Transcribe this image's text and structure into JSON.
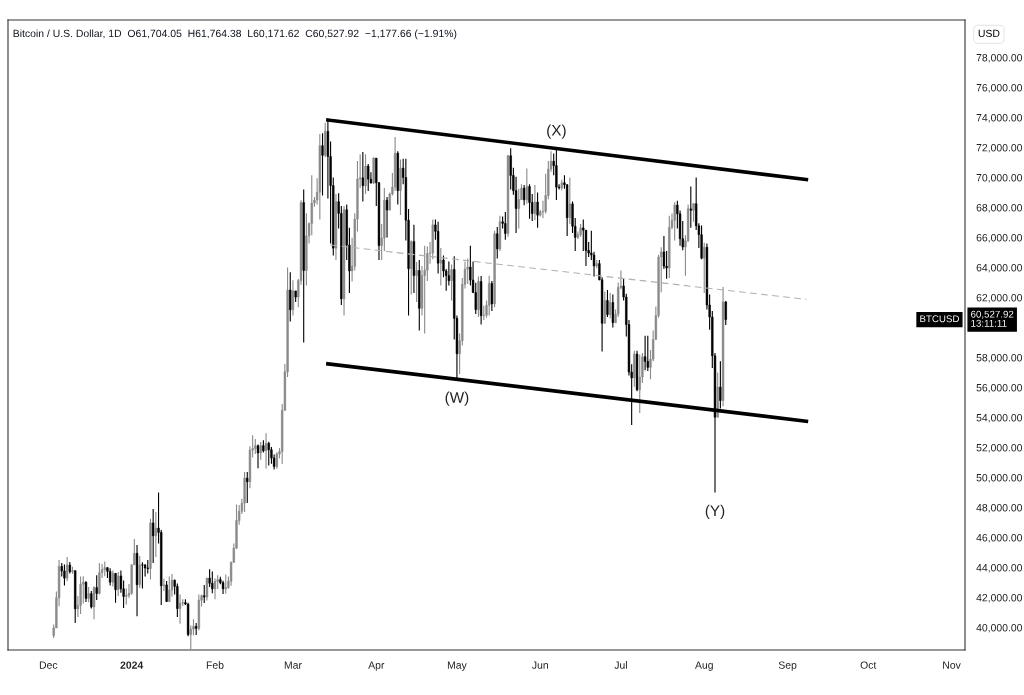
{
  "chart_data": {
    "type": "candlestick",
    "title": "Bitcoin / U.S. Dollar, 1D  O61,704.05  H61,764.38  L60,171.62  C60,527.92  −1,177.66 (−1.91%)",
    "ylabel": "USD",
    "x": [
      "2023-12-03",
      "2023-12-04",
      "2023-12-05",
      "2023-12-06",
      "2023-12-07",
      "2023-12-08",
      "2023-12-09",
      "2023-12-10",
      "2023-12-11",
      "2023-12-12",
      "2023-12-13",
      "2023-12-14",
      "2023-12-15",
      "2023-12-16",
      "2023-12-17",
      "2023-12-18",
      "2023-12-19",
      "2023-12-20",
      "2023-12-21",
      "2023-12-22",
      "2023-12-23",
      "2023-12-24",
      "2023-12-25",
      "2023-12-26",
      "2023-12-27",
      "2023-12-28",
      "2023-12-29",
      "2023-12-30",
      "2023-12-31",
      "2024-01-01",
      "2024-01-02",
      "2024-01-03",
      "2024-01-04",
      "2024-01-05",
      "2024-01-06",
      "2024-01-07",
      "2024-01-08",
      "2024-01-09",
      "2024-01-10",
      "2024-01-11",
      "2024-01-12",
      "2024-01-13",
      "2024-01-14",
      "2024-01-15",
      "2024-01-16",
      "2024-01-17",
      "2024-01-18",
      "2024-01-19",
      "2024-01-20",
      "2024-01-21",
      "2024-01-22",
      "2024-01-23",
      "2024-01-24",
      "2024-01-25",
      "2024-01-26",
      "2024-01-27",
      "2024-01-28",
      "2024-01-29",
      "2024-01-30",
      "2024-01-31",
      "2024-02-01",
      "2024-02-02",
      "2024-02-03",
      "2024-02-04",
      "2024-02-05",
      "2024-02-06",
      "2024-02-07",
      "2024-02-08",
      "2024-02-09",
      "2024-02-10",
      "2024-02-11",
      "2024-02-12",
      "2024-02-13",
      "2024-02-14",
      "2024-02-15",
      "2024-02-16",
      "2024-02-17",
      "2024-02-18",
      "2024-02-19",
      "2024-02-20",
      "2024-02-21",
      "2024-02-22",
      "2024-02-23",
      "2024-02-24",
      "2024-02-25",
      "2024-02-26",
      "2024-02-27",
      "2024-02-28",
      "2024-02-29",
      "2024-03-01",
      "2024-03-02",
      "2024-03-03",
      "2024-03-04",
      "2024-03-05",
      "2024-03-06",
      "2024-03-07",
      "2024-03-08",
      "2024-03-09",
      "2024-03-10",
      "2024-03-11",
      "2024-03-12",
      "2024-03-13",
      "2024-03-14",
      "2024-03-15",
      "2024-03-16",
      "2024-03-17",
      "2024-03-18",
      "2024-03-19",
      "2024-03-20",
      "2024-03-21",
      "2024-03-22",
      "2024-03-23",
      "2024-03-24",
      "2024-03-25",
      "2024-03-26",
      "2024-03-27",
      "2024-03-28",
      "2024-03-29",
      "2024-03-30",
      "2024-03-31",
      "2024-04-01",
      "2024-04-02",
      "2024-04-03",
      "2024-04-04",
      "2024-04-05",
      "2024-04-06",
      "2024-04-07",
      "2024-04-08",
      "2024-04-09",
      "2024-04-10",
      "2024-04-11",
      "2024-04-12",
      "2024-04-13",
      "2024-04-14",
      "2024-04-15",
      "2024-04-16",
      "2024-04-17",
      "2024-04-18",
      "2024-04-19",
      "2024-04-20",
      "2024-04-21",
      "2024-04-22",
      "2024-04-23",
      "2024-04-24",
      "2024-04-25",
      "2024-04-26",
      "2024-04-27",
      "2024-04-28",
      "2024-04-29",
      "2024-04-30",
      "2024-05-01",
      "2024-05-02",
      "2024-05-03",
      "2024-05-04",
      "2024-05-05",
      "2024-05-06",
      "2024-05-07",
      "2024-05-08",
      "2024-05-09",
      "2024-05-10",
      "2024-05-11",
      "2024-05-12",
      "2024-05-13",
      "2024-05-14",
      "2024-05-15",
      "2024-05-16",
      "2024-05-17",
      "2024-05-18",
      "2024-05-19",
      "2024-05-20",
      "2024-05-21",
      "2024-05-22",
      "2024-05-23",
      "2024-05-24",
      "2024-05-25",
      "2024-05-26",
      "2024-05-27",
      "2024-05-28",
      "2024-05-29",
      "2024-05-30",
      "2024-05-31",
      "2024-06-01",
      "2024-06-02",
      "2024-06-03",
      "2024-06-04",
      "2024-06-05",
      "2024-06-06",
      "2024-06-07",
      "2024-06-08",
      "2024-06-09",
      "2024-06-10",
      "2024-06-11",
      "2024-06-12",
      "2024-06-13",
      "2024-06-14",
      "2024-06-15",
      "2024-06-16",
      "2024-06-17",
      "2024-06-18",
      "2024-06-19",
      "2024-06-20",
      "2024-06-21",
      "2024-06-22",
      "2024-06-23",
      "2024-06-24",
      "2024-06-25",
      "2024-06-26",
      "2024-06-27",
      "2024-06-28",
      "2024-06-29",
      "2024-06-30",
      "2024-07-01",
      "2024-07-02",
      "2024-07-03",
      "2024-07-04",
      "2024-07-05",
      "2024-07-06",
      "2024-07-07",
      "2024-07-08",
      "2024-07-09",
      "2024-07-10",
      "2024-07-11",
      "2024-07-12",
      "2024-07-13",
      "2024-07-14",
      "2024-07-15",
      "2024-07-16",
      "2024-07-17",
      "2024-07-18",
      "2024-07-19",
      "2024-07-20",
      "2024-07-21",
      "2024-07-22",
      "2024-07-23",
      "2024-07-24",
      "2024-07-25",
      "2024-07-26",
      "2024-07-27",
      "2024-07-28",
      "2024-07-29",
      "2024-07-30",
      "2024-07-31",
      "2024-08-01",
      "2024-08-02",
      "2024-08-03",
      "2024-08-04",
      "2024-08-05",
      "2024-08-06",
      "2024-08-07",
      "2024-08-08",
      "2024-08-09"
    ],
    "ohlc": [
      [
        39460,
        40200,
        39300,
        39970
      ],
      [
        39970,
        42400,
        39970,
        41980
      ],
      [
        41980,
        44500,
        41420,
        44080
      ],
      [
        44080,
        44300,
        43400,
        43770
      ],
      [
        43770,
        44200,
        42800,
        43290
      ],
      [
        43290,
        44700,
        43100,
        44170
      ],
      [
        44170,
        44370,
        43600,
        43720
      ],
      [
        43720,
        44050,
        43580,
        43790
      ],
      [
        43790,
        43800,
        40300,
        41240
      ],
      [
        41240,
        42100,
        40700,
        41480
      ],
      [
        41480,
        43400,
        40900,
        42890
      ],
      [
        42890,
        43420,
        41600,
        43020
      ],
      [
        43020,
        43090,
        41700,
        41940
      ],
      [
        41940,
        42700,
        41680,
        42260
      ],
      [
        42260,
        42430,
        41260,
        41370
      ],
      [
        41370,
        42750,
        40550,
        42660
      ],
      [
        42660,
        43480,
        41830,
        42270
      ],
      [
        42270,
        44290,
        42200,
        43660
      ],
      [
        43660,
        44240,
        43300,
        43860
      ],
      [
        43860,
        44400,
        43420,
        43990
      ],
      [
        43990,
        44020,
        43300,
        43740
      ],
      [
        43740,
        43950,
        42800,
        43020
      ],
      [
        43020,
        43800,
        42740,
        43610
      ],
      [
        43610,
        43620,
        41650,
        42520
      ],
      [
        42520,
        43700,
        42100,
        43440
      ],
      [
        43440,
        43800,
        42320,
        42580
      ],
      [
        42580,
        43130,
        41300,
        42070
      ],
      [
        42070,
        42600,
        41540,
        42140
      ],
      [
        42140,
        42900,
        41960,
        42280
      ],
      [
        42280,
        44200,
        42180,
        44180
      ],
      [
        44180,
        45900,
        44180,
        44950
      ],
      [
        44950,
        45500,
        40750,
        42850
      ],
      [
        42850,
        44770,
        42630,
        44180
      ],
      [
        44180,
        44350,
        42600,
        44160
      ],
      [
        44160,
        44230,
        43400,
        43970
      ],
      [
        43970,
        44500,
        43600,
        43930
      ],
      [
        43930,
        47250,
        43200,
        46970
      ],
      [
        46970,
        47900,
        44300,
        46110
      ],
      [
        46110,
        47700,
        44700,
        46630
      ],
      [
        46630,
        49000,
        45600,
        46340
      ],
      [
        46340,
        46500,
        41500,
        42780
      ],
      [
        42780,
        43250,
        42440,
        42840
      ],
      [
        42840,
        43100,
        41720,
        41730
      ],
      [
        41730,
        43400,
        41720,
        42500
      ],
      [
        42500,
        43570,
        42050,
        43150
      ],
      [
        43150,
        43200,
        42200,
        42740
      ],
      [
        42740,
        42930,
        40700,
        41260
      ],
      [
        41260,
        42200,
        40250,
        41620
      ],
      [
        41620,
        41880,
        41430,
        41660
      ],
      [
        41660,
        41880,
        41500,
        41560
      ],
      [
        41560,
        41650,
        39420,
        39530
      ],
      [
        39530,
        40140,
        38555,
        39890
      ],
      [
        39890,
        40550,
        39480,
        40080
      ],
      [
        40080,
        40300,
        39500,
        39940
      ],
      [
        39940,
        42200,
        39800,
        41820
      ],
      [
        41820,
        42200,
        41400,
        42120
      ],
      [
        42120,
        42830,
        41640,
        42030
      ],
      [
        42030,
        43300,
        41800,
        43300
      ],
      [
        43300,
        43880,
        42700,
        42950
      ],
      [
        42950,
        43740,
        42290,
        42580
      ],
      [
        42580,
        43290,
        41880,
        43080
      ],
      [
        43080,
        43480,
        42570,
        43190
      ],
      [
        43190,
        43380,
        42880,
        42990
      ],
      [
        42990,
        43120,
        42230,
        42580
      ],
      [
        42580,
        43540,
        42250,
        42660
      ],
      [
        42660,
        43400,
        42580,
        43090
      ],
      [
        43090,
        44400,
        42780,
        44340
      ],
      [
        44340,
        45600,
        44340,
        45290
      ],
      [
        45290,
        48200,
        45240,
        47130
      ],
      [
        47130,
        48170,
        46850,
        47750
      ],
      [
        47750,
        48590,
        47560,
        48290
      ],
      [
        48290,
        50360,
        47700,
        49960
      ],
      [
        49960,
        50370,
        48300,
        49720
      ],
      [
        49720,
        52080,
        49280,
        51820
      ],
      [
        51820,
        52820,
        51330,
        51930
      ],
      [
        51930,
        52570,
        51570,
        52120
      ],
      [
        52120,
        52200,
        50620,
        51640
      ],
      [
        51640,
        52370,
        51180,
        52120
      ],
      [
        52120,
        52480,
        51670,
        51780
      ],
      [
        51780,
        52950,
        50600,
        52280
      ],
      [
        52280,
        52380,
        50800,
        51850
      ],
      [
        51850,
        52030,
        50920,
        51300
      ],
      [
        51300,
        51540,
        50530,
        50730
      ],
      [
        50730,
        51680,
        50580,
        51570
      ],
      [
        51570,
        51960,
        51280,
        51730
      ],
      [
        51730,
        54900,
        50900,
        54490
      ],
      [
        54490,
        57570,
        54450,
        57050
      ],
      [
        57050,
        64000,
        56700,
        62500
      ],
      [
        62500,
        63680,
        60400,
        61180
      ],
      [
        61180,
        63150,
        60800,
        62440
      ],
      [
        62440,
        62440,
        61700,
        62030
      ],
      [
        62030,
        63230,
        61350,
        63130
      ],
      [
        63130,
        68490,
        62850,
        68330
      ],
      [
        68330,
        69200,
        59000,
        63800
      ],
      [
        63800,
        67620,
        62800,
        66110
      ],
      [
        66110,
        67000,
        65600,
        66930
      ],
      [
        66930,
        70150,
        66150,
        68300
      ],
      [
        68300,
        68700,
        68050,
        68500
      ],
      [
        68500,
        69950,
        68200,
        69020
      ],
      [
        69020,
        72900,
        67200,
        72120
      ],
      [
        72120,
        72950,
        68800,
        71480
      ],
      [
        71480,
        73650,
        71350,
        73080
      ],
      [
        73080,
        73800,
        68600,
        71400
      ],
      [
        71400,
        72400,
        65600,
        69460
      ],
      [
        69460,
        70000,
        64800,
        65290
      ],
      [
        65290,
        68900,
        64500,
        68390
      ],
      [
        68390,
        68950,
        66600,
        67610
      ],
      [
        67610,
        68100,
        61500,
        61910
      ],
      [
        61910,
        68100,
        60800,
        67850
      ],
      [
        67850,
        68200,
        64500,
        65490
      ],
      [
        65490,
        66650,
        62300,
        63770
      ],
      [
        63770,
        65980,
        63060,
        64080
      ],
      [
        64080,
        67620,
        63800,
        67230
      ],
      [
        67230,
        71100,
        66400,
        69900
      ],
      [
        69900,
        71550,
        69300,
        69980
      ],
      [
        69980,
        71700,
        68400,
        69450
      ],
      [
        69450,
        71550,
        68900,
        70760
      ],
      [
        70760,
        70900,
        69100,
        69890
      ],
      [
        69890,
        70350,
        69600,
        69630
      ],
      [
        69630,
        71350,
        69570,
        71290
      ],
      [
        71290,
        71300,
        68100,
        69650
      ],
      [
        69650,
        69700,
        64500,
        65460
      ],
      [
        65460,
        66900,
        64500,
        65960
      ],
      [
        65960,
        69300,
        65100,
        68490
      ],
      [
        68490,
        68700,
        66000,
        67830
      ],
      [
        67830,
        69000,
        67800,
        68900
      ],
      [
        68900,
        70300,
        68800,
        69360
      ],
      [
        69360,
        72700,
        69100,
        71620
      ],
      [
        71620,
        71750,
        68200,
        69130
      ],
      [
        69130,
        71200,
        67500,
        70620
      ],
      [
        70620,
        71250,
        69550,
        70000
      ],
      [
        70000,
        71250,
        65800,
        67150
      ],
      [
        67150,
        67900,
        60800,
        63920
      ],
      [
        63920,
        65800,
        62200,
        65730
      ],
      [
        65730,
        66850,
        62300,
        63460
      ],
      [
        63460,
        64360,
        61700,
        63800
      ],
      [
        63800,
        64500,
        59800,
        61280
      ],
      [
        61280,
        64100,
        60800,
        63470
      ],
      [
        63470,
        65450,
        59600,
        63820
      ],
      [
        63820,
        65400,
        63100,
        64940
      ],
      [
        64940,
        65700,
        64250,
        64960
      ],
      [
        64960,
        67200,
        64550,
        66840
      ],
      [
        66840,
        67200,
        65850,
        66410
      ],
      [
        66410,
        67050,
        63600,
        64290
      ],
      [
        64290,
        65300,
        62800,
        64500
      ],
      [
        64500,
        64800,
        63350,
        63770
      ],
      [
        63770,
        63900,
        62450,
        63460
      ],
      [
        63460,
        64400,
        62800,
        63120
      ],
      [
        63120,
        64200,
        61800,
        63870
      ],
      [
        63870,
        64750,
        59200,
        60610
      ],
      [
        60610,
        60800,
        56550,
        58250
      ],
      [
        58250,
        59600,
        56900,
        59120
      ],
      [
        59120,
        63300,
        58800,
        62890
      ],
      [
        62890,
        64400,
        62600,
        63890
      ],
      [
        63890,
        64600,
        62900,
        64030
      ],
      [
        64030,
        65450,
        62800,
        63160
      ],
      [
        63160,
        64400,
        62300,
        62330
      ],
      [
        62330,
        62990,
        60900,
        61190
      ],
      [
        61190,
        63400,
        60700,
        63070
      ],
      [
        63070,
        63440,
        60200,
        60790
      ],
      [
        60790,
        61450,
        60500,
        60820
      ],
      [
        60820,
        61800,
        60650,
        61480
      ],
      [
        61480,
        63450,
        60800,
        62940
      ],
      [
        62940,
        63100,
        61100,
        61570
      ],
      [
        61570,
        66450,
        61350,
        66250
      ],
      [
        66250,
        66700,
        64600,
        65240
      ],
      [
        65240,
        67450,
        65100,
        67050
      ],
      [
        67050,
        67400,
        66600,
        66940
      ],
      [
        66940,
        67700,
        65850,
        66270
      ],
      [
        66270,
        71500,
        66050,
        71450
      ],
      [
        71450,
        71950,
        69200,
        70140
      ],
      [
        70140,
        70650,
        68850,
        69120
      ],
      [
        69120,
        70050,
        66300,
        67930
      ],
      [
        67930,
        69250,
        66600,
        68530
      ],
      [
        68530,
        69550,
        68500,
        69290
      ],
      [
        69290,
        69500,
        68150,
        68510
      ],
      [
        68510,
        70600,
        68250,
        69400
      ],
      [
        69400,
        69550,
        67250,
        68330
      ],
      [
        68330,
        68900,
        67100,
        67600
      ],
      [
        67600,
        69500,
        67150,
        68360
      ],
      [
        68360,
        69000,
        66650,
        67490
      ],
      [
        67490,
        67850,
        67400,
        67710
      ],
      [
        67710,
        68450,
        67300,
        67750
      ],
      [
        67750,
        70250,
        67600,
        68800
      ],
      [
        68800,
        71100,
        68550,
        70560
      ],
      [
        70560,
        71750,
        70380,
        71080
      ],
      [
        71080,
        71600,
        70150,
        70790
      ],
      [
        70790,
        71950,
        68500,
        69360
      ],
      [
        69360,
        69550,
        69200,
        69310
      ],
      [
        69310,
        69850,
        69150,
        69650
      ],
      [
        69650,
        70150,
        69250,
        69510
      ],
      [
        69510,
        69560,
        66100,
        67320
      ],
      [
        67320,
        69980,
        66900,
        68240
      ],
      [
        68240,
        68400,
        66300,
        66750
      ],
      [
        66750,
        67300,
        65100,
        66010
      ],
      [
        66010,
        66400,
        65900,
        66190
      ],
      [
        66190,
        66900,
        66050,
        66640
      ],
      [
        66640,
        67200,
        65100,
        66490
      ],
      [
        66490,
        66500,
        64100,
        65140
      ],
      [
        65140,
        65700,
        64700,
        64960
      ],
      [
        64960,
        66450,
        64500,
        64840
      ],
      [
        64840,
        65050,
        63400,
        64100
      ],
      [
        64100,
        64500,
        63950,
        64260
      ],
      [
        64260,
        64500,
        63150,
        63180
      ],
      [
        63180,
        63350,
        58400,
        60280
      ],
      [
        60280,
        62400,
        60250,
        61800
      ],
      [
        61800,
        62500,
        60700,
        60860
      ],
      [
        60860,
        62300,
        60600,
        61670
      ],
      [
        61670,
        62200,
        60000,
        60320
      ],
      [
        60320,
        61200,
        60300,
        60890
      ],
      [
        60890,
        63000,
        60700,
        62670
      ],
      [
        62670,
        63800,
        62550,
        62770
      ],
      [
        62770,
        63300,
        61800,
        62030
      ],
      [
        62030,
        62250,
        59400,
        60200
      ],
      [
        60200,
        60500,
        56800,
        57030
      ],
      [
        57030,
        57550,
        53500,
        56640
      ],
      [
        56640,
        58450,
        56050,
        58230
      ],
      [
        58230,
        58450,
        55750,
        55850
      ],
      [
        55850,
        58200,
        54300,
        56700
      ],
      [
        56700,
        58300,
        56300,
        58050
      ],
      [
        58050,
        59450,
        57150,
        57740
      ],
      [
        57740,
        59450,
        57100,
        57340
      ],
      [
        57340,
        58500,
        56550,
        57890
      ],
      [
        57890,
        59800,
        57750,
        59200
      ],
      [
        59200,
        61400,
        59200,
        60800
      ],
      [
        60800,
        64850,
        60650,
        64700
      ],
      [
        64700,
        65350,
        62350,
        65040
      ],
      [
        65040,
        66100,
        63900,
        64090
      ],
      [
        64090,
        65100,
        63250,
        63970
      ],
      [
        63970,
        67450,
        63300,
        66680
      ],
      [
        66680,
        67600,
        66550,
        67150
      ],
      [
        67150,
        68350,
        65800,
        68160
      ],
      [
        68160,
        68450,
        66600,
        67580
      ],
      [
        67580,
        67800,
        65450,
        65920
      ],
      [
        65920,
        67100,
        65150,
        65370
      ],
      [
        65370,
        66150,
        63450,
        65780
      ],
      [
        65780,
        68200,
        65700,
        67910
      ],
      [
        67910,
        69400,
        66650,
        67810
      ],
      [
        67810,
        68300,
        67050,
        68250
      ],
      [
        68250,
        70000,
        66500,
        66780
      ],
      [
        66780,
        66950,
        65300,
        66190
      ],
      [
        66190,
        66800,
        64550,
        64620
      ],
      [
        64620,
        65650,
        62300,
        65350
      ],
      [
        65350,
        65600,
        61200,
        61500
      ],
      [
        61500,
        62200,
        59850,
        60700
      ],
      [
        60700,
        61100,
        57300,
        58110
      ],
      [
        58110,
        58300,
        49000,
        54020
      ],
      [
        54020,
        57000,
        54000,
        56030
      ],
      [
        56030,
        57750,
        54600,
        55130
      ],
      [
        55130,
        62700,
        54750,
        61704.05
      ],
      [
        61704.05,
        61764.38,
        60171.62,
        60527.92
      ]
    ],
    "colors": [
      "#8a8a8a",
      "#8a8a8a",
      "#8a8a8a",
      "#000000",
      "#000000",
      "#8a8a8a",
      "#000000",
      "#8a8a8a",
      "#000000",
      "#8a8a8a",
      "#8a8a8a",
      "#8a8a8a",
      "#000000",
      "#8a8a8a",
      "#000000",
      "#8a8a8a",
      "#000000",
      "#8a8a8a",
      "#8a8a8a",
      "#8a8a8a",
      "#000000",
      "#000000",
      "#8a8a8a",
      "#000000",
      "#8a8a8a",
      "#000000",
      "#000000",
      "#8a8a8a",
      "#8a8a8a",
      "#8a8a8a",
      "#8a8a8a",
      "#000000",
      "#8a8a8a",
      "#000000",
      "#000000",
      "#000000",
      "#8a8a8a",
      "#000000",
      "#8a8a8a",
      "#000000",
      "#000000",
      "#8a8a8a",
      "#000000",
      "#8a8a8a",
      "#8a8a8a",
      "#000000",
      "#000000",
      "#8a8a8a",
      "#8a8a8a",
      "#000000",
      "#000000",
      "#8a8a8a",
      "#8a8a8a",
      "#000000",
      "#8a8a8a",
      "#8a8a8a",
      "#000000",
      "#8a8a8a",
      "#000000",
      "#000000",
      "#8a8a8a",
      "#8a8a8a",
      "#000000",
      "#000000",
      "#8a8a8a",
      "#8a8a8a",
      "#8a8a8a",
      "#8a8a8a",
      "#8a8a8a",
      "#8a8a8a",
      "#8a8a8a",
      "#8a8a8a",
      "#000000",
      "#8a8a8a",
      "#8a8a8a",
      "#8a8a8a",
      "#000000",
      "#8a8a8a",
      "#000000",
      "#8a8a8a",
      "#000000",
      "#000000",
      "#000000",
      "#8a8a8a",
      "#8a8a8a",
      "#8a8a8a",
      "#8a8a8a",
      "#8a8a8a",
      "#000000",
      "#8a8a8a",
      "#000000",
      "#8a8a8a",
      "#8a8a8a",
      "#000000",
      "#8a8a8a",
      "#8a8a8a",
      "#8a8a8a",
      "#8a8a8a",
      "#8a8a8a",
      "#8a8a8a",
      "#000000",
      "#8a8a8a",
      "#000000",
      "#000000",
      "#000000",
      "#8a8a8a",
      "#000000",
      "#000000",
      "#8a8a8a",
      "#000000",
      "#000000",
      "#8a8a8a",
      "#8a8a8a",
      "#8a8a8a",
      "#8a8a8a",
      "#000000",
      "#8a8a8a",
      "#000000",
      "#000000",
      "#8a8a8a",
      "#000000",
      "#000000",
      "#8a8a8a",
      "#8a8a8a",
      "#000000",
      "#8a8a8a",
      "#8a8a8a",
      "#8a8a8a",
      "#000000",
      "#8a8a8a",
      "#000000",
      "#000000",
      "#000000",
      "#8a8a8a",
      "#000000",
      "#8a8a8a",
      "#000000",
      "#8a8a8a",
      "#8a8a8a",
      "#8a8a8a",
      "#8a8a8a",
      "#8a8a8a",
      "#000000",
      "#000000",
      "#8a8a8a",
      "#000000",
      "#000000",
      "#000000",
      "#8a8a8a",
      "#000000",
      "#000000",
      "#8a8a8a",
      "#8a8a8a",
      "#8a8a8a",
      "#8a8a8a",
      "#000000",
      "#000000",
      "#000000",
      "#8a8a8a",
      "#000000",
      "#8a8a8a",
      "#8a8a8a",
      "#8a8a8a",
      "#000000",
      "#8a8a8a",
      "#000000",
      "#8a8a8a",
      "#000000",
      "#000000",
      "#8a8a8a",
      "#000000",
      "#000000",
      "#000000",
      "#8a8a8a",
      "#8a8a8a",
      "#000000",
      "#8a8a8a",
      "#000000",
      "#000000",
      "#8a8a8a",
      "#000000",
      "#8a8a8a",
      "#8a8a8a",
      "#8a8a8a",
      "#8a8a8a",
      "#8a8a8a",
      "#000000",
      "#000000",
      "#000000",
      "#8a8a8a",
      "#000000",
      "#000000",
      "#8a8a8a",
      "#000000",
      "#000000",
      "#8a8a8a",
      "#8a8a8a",
      "#000000",
      "#000000",
      "#000000",
      "#000000",
      "#000000",
      "#8a8a8a",
      "#000000",
      "#000000",
      "#8a8a8a",
      "#000000",
      "#8a8a8a",
      "#000000",
      "#8a8a8a",
      "#8a8a8a",
      "#8a8a8a",
      "#000000",
      "#000000",
      "#000000",
      "#000000",
      "#8a8a8a",
      "#000000",
      "#8a8a8a",
      "#8a8a8a",
      "#000000",
      "#000000",
      "#8a8a8a",
      "#8a8a8a",
      "#8a8a8a",
      "#8a8a8a",
      "#8a8a8a",
      "#000000",
      "#000000",
      "#8a8a8a",
      "#8a8a8a",
      "#8a8a8a",
      "#000000",
      "#000000",
      "#000000",
      "#8a8a8a",
      "#8a8a8a",
      "#000000",
      "#8a8a8a",
      "#000000",
      "#000000",
      "#000000",
      "#8a8a8a",
      "#000000",
      "#000000",
      "#000000",
      "#000000",
      "#8a8a8a",
      "#000000",
      "#8a8a8a",
      "#000000"
    ],
    "series": [
      {
        "type": "line",
        "color": "#000000",
        "line_style": "solid",
        "x": [
          "2024-03-14",
          "2024-09-08"
        ],
        "values": [
          73830,
          69860
        ]
      },
      {
        "type": "line",
        "color": "#000000",
        "line_style": "solid",
        "x": [
          "2024-03-14",
          "2024-09-08"
        ],
        "values": [
          57580,
          53750
        ]
      },
      {
        "type": "line",
        "color": "#b0b0b0",
        "line_style": "dashed",
        "x": [
          "2024-03-15",
          "2024-09-08"
        ],
        "values": [
          65500,
          61870
        ]
      }
    ],
    "annotations": [
      {
        "text": "(X)",
        "x": "2024-06-07",
        "y": 71950
      },
      {
        "text": "(W)",
        "x": "2024-05-01",
        "y": 56550
      },
      {
        "text": "(Y)",
        "x": "2024-08-05",
        "y": 49000
      },
      "BTCUSD",
      "60,527.92\n13:11:11"
    ],
    "xlim": [
      "2023-11-16",
      "2024-11-06"
    ],
    "xticks": [
      {
        "value": "2023-12-01",
        "label": "Dec"
      },
      {
        "value": "2024-01-01",
        "label": "2024"
      },
      {
        "value": "2024-02-01",
        "label": "Feb"
      },
      {
        "value": "2024-03-01",
        "label": "Mar"
      },
      {
        "value": "2024-04-01",
        "label": "Apr"
      },
      {
        "value": "2024-05-01",
        "label": "May"
      },
      {
        "value": "2024-06-01",
        "label": "Jun"
      },
      {
        "value": "2024-07-01",
        "label": "Jul"
      },
      {
        "value": "2024-08-01",
        "label": "Aug"
      },
      {
        "value": "2024-09-01",
        "label": "Sep"
      },
      {
        "value": "2024-10-01",
        "label": "Oct"
      },
      {
        "value": "2024-11-01",
        "label": "Nov"
      }
    ],
    "ylim": [
      38500,
      80500
    ],
    "yticks": [
      {
        "value": 40000,
        "label": "40,000.00"
      },
      {
        "value": 42000,
        "label": "42,000.00"
      },
      {
        "value": 44000,
        "label": "44,000.00"
      },
      {
        "value": 46000,
        "label": "46,000.00"
      },
      {
        "value": 48000,
        "label": "48,000.00"
      },
      {
        "value": 50000,
        "label": "50,000.00"
      },
      {
        "value": 52000,
        "label": "52,000.00"
      },
      {
        "value": 54000,
        "label": "54,000.00"
      },
      {
        "value": 56000,
        "label": "56,000.00"
      },
      {
        "value": 58000,
        "label": "58,000.00"
      },
      {
        "value": 62000,
        "label": "62,000.00"
      },
      {
        "value": 64000,
        "label": "64,000.00"
      },
      {
        "value": 66000,
        "label": "66,000.00"
      },
      {
        "value": 68000,
        "label": "68,000.00"
      },
      {
        "value": 70000,
        "label": "70,000.00"
      },
      {
        "value": 72000,
        "label": "72,000.00"
      },
      {
        "value": 74000,
        "label": "74,000.00"
      },
      {
        "value": 76000,
        "label": "76,000.00"
      },
      {
        "value": 78000,
        "label": "78,000.00"
      }
    ]
  }
}
